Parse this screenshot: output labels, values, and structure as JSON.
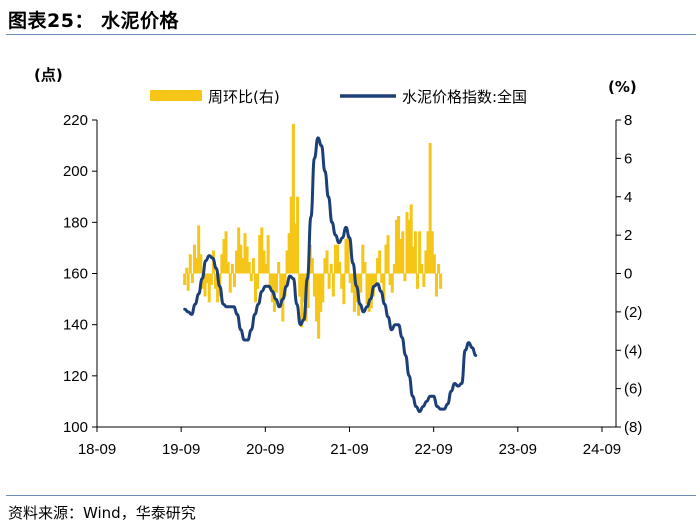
{
  "header": {
    "title": "图表25：  水泥价格"
  },
  "footer": {
    "source": "资料来源：Wind，华泰研究"
  },
  "chart_data": {
    "type": "bar+line",
    "left_unit": "(点)",
    "right_unit": "(%)",
    "x_ticks": [
      "18-09",
      "19-09",
      "20-09",
      "21-09",
      "22-09",
      "23-09",
      "24-09"
    ],
    "y_left_ticks": [
      "100",
      "120",
      "140",
      "160",
      "180",
      "200",
      "220"
    ],
    "y_right_ticks": [
      "(8)",
      "(6)",
      "(4)",
      "(2)",
      "0",
      "2",
      "4",
      "6",
      "8"
    ],
    "y_left_range": [
      100,
      220
    ],
    "y_right_range": [
      -8,
      8
    ],
    "x_range": [
      "2018-09",
      "2024-11"
    ],
    "colors": {
      "bars": "#f5c518",
      "line": "#1c3f78"
    },
    "series": [
      {
        "name": "周环比(右)",
        "type": "bar",
        "axis": "right",
        "points": [
          [
            12.5,
            -0.6
          ],
          [
            12.8,
            0.3
          ],
          [
            13.0,
            -0.9
          ],
          [
            13.3,
            1.0
          ],
          [
            13.6,
            -0.5
          ],
          [
            13.9,
            1.5
          ],
          [
            14.2,
            0.8
          ],
          [
            14.5,
            2.5
          ],
          [
            14.8,
            1.0
          ],
          [
            15.1,
            -0.8
          ],
          [
            15.4,
            -1.2
          ],
          [
            15.7,
            -0.5
          ],
          [
            16.0,
            -1.5
          ],
          [
            16.3,
            -0.6
          ],
          [
            16.6,
            1.2
          ],
          [
            16.9,
            -0.8
          ],
          [
            17.2,
            -1.5
          ],
          [
            17.5,
            -1.2
          ],
          [
            17.8,
            1.0
          ],
          [
            18.1,
            1.8
          ],
          [
            18.4,
            2.2
          ],
          [
            18.7,
            0.6
          ],
          [
            19.0,
            -1.0
          ],
          [
            19.3,
            0.5
          ],
          [
            19.6,
            -0.7
          ],
          [
            19.9,
            1.2
          ],
          [
            20.2,
            2.4
          ],
          [
            20.5,
            1.5
          ],
          [
            20.8,
            0.8
          ],
          [
            21.1,
            2.1
          ],
          [
            21.4,
            1.4
          ],
          [
            21.7,
            0.6
          ],
          [
            22.0,
            -0.4
          ],
          [
            22.3,
            0.8
          ],
          [
            22.6,
            -1.5
          ],
          [
            22.9,
            -0.8
          ],
          [
            23.2,
            2.0
          ],
          [
            23.5,
            2.4
          ],
          [
            23.8,
            1.2
          ],
          [
            24.1,
            0.5
          ],
          [
            24.4,
            2.0
          ],
          [
            24.7,
            -0.8
          ],
          [
            25.0,
            -1.5
          ],
          [
            25.3,
            -2.0
          ],
          [
            25.6,
            -1.0
          ],
          [
            25.9,
            0.6
          ],
          [
            26.2,
            -1.5
          ],
          [
            26.5,
            -2.5
          ],
          [
            26.8,
            -1.2
          ],
          [
            27.1,
            1.2
          ],
          [
            27.4,
            2.1
          ],
          [
            27.7,
            4.0
          ],
          [
            28.0,
            7.8
          ],
          [
            28.3,
            2.6
          ],
          [
            28.6,
            4.0
          ],
          [
            28.9,
            -1.2
          ],
          [
            29.2,
            -2.8
          ],
          [
            29.5,
            -1.5
          ],
          [
            29.8,
            -2.5
          ],
          [
            30.1,
            -1.8
          ],
          [
            30.4,
            1.5
          ],
          [
            30.7,
            0.8
          ],
          [
            31.0,
            -1.2
          ],
          [
            31.3,
            -2.5
          ],
          [
            31.6,
            -3.4
          ],
          [
            31.9,
            -2.0
          ],
          [
            32.2,
            -1.5
          ],
          [
            32.5,
            0.8
          ],
          [
            32.8,
            1.2
          ],
          [
            33.1,
            -0.8
          ],
          [
            33.4,
            0.5
          ],
          [
            33.7,
            -1.2
          ],
          [
            34.0,
            1.5
          ],
          [
            34.3,
            1.5
          ],
          [
            34.6,
            0.6
          ],
          [
            34.9,
            -0.8
          ],
          [
            35.2,
            -1.6
          ],
          [
            35.5,
            1.8
          ],
          [
            35.8,
            2.0
          ],
          [
            36.1,
            -0.5
          ],
          [
            36.4,
            -1.0
          ],
          [
            36.7,
            -2.0
          ],
          [
            37.0,
            -1.5
          ],
          [
            37.3,
            -2.2
          ],
          [
            37.6,
            -1.0
          ],
          [
            37.9,
            1.5
          ],
          [
            38.2,
            0.6
          ],
          [
            38.5,
            -1.6
          ],
          [
            38.8,
            -2.0
          ],
          [
            39.1,
            -1.8
          ],
          [
            39.4,
            -1.2
          ],
          [
            39.7,
            -0.6
          ],
          [
            40.0,
            0.8
          ],
          [
            40.3,
            1.2
          ],
          [
            40.6,
            -0.5
          ],
          [
            40.9,
            -1.5
          ],
          [
            41.2,
            1.5
          ],
          [
            41.5,
            2.0
          ],
          [
            41.8,
            -0.6
          ],
          [
            42.1,
            -1.0
          ],
          [
            42.4,
            0.5
          ],
          [
            42.7,
            2.8
          ],
          [
            43.0,
            3.0
          ],
          [
            43.3,
            1.8
          ],
          [
            43.6,
            2.2
          ],
          [
            43.9,
            -0.4
          ],
          [
            44.2,
            3.2
          ],
          [
            44.5,
            2.8
          ],
          [
            44.8,
            3.6
          ],
          [
            45.1,
            1.4
          ],
          [
            45.4,
            2.2
          ],
          [
            45.7,
            -0.8
          ],
          [
            46.0,
            2.2
          ],
          [
            46.3,
            0.5
          ],
          [
            46.6,
            -0.7
          ],
          [
            46.9,
            1.2
          ],
          [
            47.2,
            2.2
          ],
          [
            47.5,
            6.8
          ],
          [
            47.8,
            2.2
          ],
          [
            48.1,
            1.0
          ],
          [
            48.4,
            -1.2
          ],
          [
            48.7,
            0.5
          ],
          [
            49.0,
            -0.8
          ]
        ]
      },
      {
        "name": "水泥价格指数:全国",
        "type": "line",
        "axis": "left",
        "points": [
          [
            12.5,
            146
          ],
          [
            13.0,
            145
          ],
          [
            13.5,
            144
          ],
          [
            14.0,
            148
          ],
          [
            14.5,
            152
          ],
          [
            15.0,
            158
          ],
          [
            15.5,
            165
          ],
          [
            16.0,
            167
          ],
          [
            16.5,
            166
          ],
          [
            17.0,
            162
          ],
          [
            17.5,
            155
          ],
          [
            18.0,
            148
          ],
          [
            18.5,
            147
          ],
          [
            19.0,
            147
          ],
          [
            19.5,
            147
          ],
          [
            20.0,
            144
          ],
          [
            20.5,
            138
          ],
          [
            21.0,
            134
          ],
          [
            21.5,
            134
          ],
          [
            22.0,
            138
          ],
          [
            22.5,
            144
          ],
          [
            23.0,
            148
          ],
          [
            23.5,
            153
          ],
          [
            24.0,
            155
          ],
          [
            24.5,
            155
          ],
          [
            25.0,
            153
          ],
          [
            25.5,
            150
          ],
          [
            26.0,
            147
          ],
          [
            26.5,
            150
          ],
          [
            27.0,
            155
          ],
          [
            27.5,
            159
          ],
          [
            28.0,
            158
          ],
          [
            28.5,
            148
          ],
          [
            29.0,
            140
          ],
          [
            29.5,
            142
          ],
          [
            30.0,
            158
          ],
          [
            30.5,
            182
          ],
          [
            31.0,
            205
          ],
          [
            31.5,
            213
          ],
          [
            32.0,
            210
          ],
          [
            32.5,
            200
          ],
          [
            33.0,
            190
          ],
          [
            33.5,
            180
          ],
          [
            34.0,
            175
          ],
          [
            34.5,
            172
          ],
          [
            35.0,
            174
          ],
          [
            35.5,
            178
          ],
          [
            36.0,
            174
          ],
          [
            36.5,
            164
          ],
          [
            37.0,
            155
          ],
          [
            37.5,
            148
          ],
          [
            38.0,
            145
          ],
          [
            38.5,
            147
          ],
          [
            39.0,
            150
          ],
          [
            39.5,
            155
          ],
          [
            40.0,
            156
          ],
          [
            40.5,
            153
          ],
          [
            41.0,
            148
          ],
          [
            41.5,
            143
          ],
          [
            42.0,
            138
          ],
          [
            42.5,
            140
          ],
          [
            43.0,
            140
          ],
          [
            43.5,
            135
          ],
          [
            44.0,
            128
          ],
          [
            44.5,
            120
          ],
          [
            45.0,
            112
          ],
          [
            45.5,
            108
          ],
          [
            46.0,
            106
          ],
          [
            46.5,
            108
          ],
          [
            47.0,
            110
          ],
          [
            47.5,
            112
          ],
          [
            48.0,
            112
          ],
          [
            48.5,
            108
          ],
          [
            49.0,
            107
          ],
          [
            49.5,
            107
          ],
          [
            50.0,
            109
          ],
          [
            50.5,
            114
          ],
          [
            51.0,
            117
          ],
          [
            51.5,
            116
          ],
          [
            52.0,
            117
          ],
          [
            52.5,
            130
          ],
          [
            53.0,
            133
          ],
          [
            53.5,
            131
          ],
          [
            54.0,
            128
          ]
        ]
      }
    ]
  }
}
